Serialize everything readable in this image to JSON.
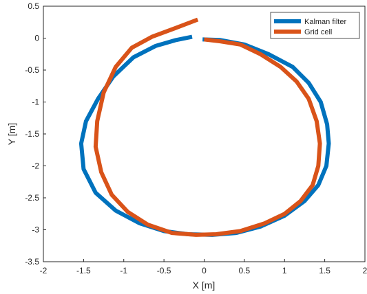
{
  "chart_data": {
    "type": "line",
    "title": "",
    "xlabel": "X [m]",
    "ylabel": "Y [m]",
    "xlim": [
      -2,
      2
    ],
    "ylim": [
      -3.5,
      0.5
    ],
    "xticks": [
      "-2",
      "-1.5",
      "-1",
      "-0.5",
      "0",
      "0.5",
      "1",
      "1.5",
      "2"
    ],
    "yticks": [
      "0.5",
      "0",
      "-0.5",
      "-1",
      "-1.5",
      "-2",
      "-2.5",
      "-3",
      "-3.5"
    ],
    "grid": false,
    "legend_position": "top-right",
    "series": [
      {
        "name": "Kalman filter",
        "color": "#0072BD",
        "x": [
          -0.02,
          0.2,
          0.5,
          0.8,
          1.1,
          1.3,
          1.45,
          1.53,
          1.55,
          1.52,
          1.42,
          1.25,
          1.0,
          0.7,
          0.4,
          0.1,
          -0.2,
          -0.5,
          -0.8,
          -1.1,
          -1.35,
          -1.5,
          -1.53,
          -1.47,
          -1.32,
          -1.13,
          -0.88,
          -0.6,
          -0.35,
          -0.15
        ],
        "y": [
          -0.02,
          -0.03,
          -0.1,
          -0.25,
          -0.45,
          -0.7,
          -1.0,
          -1.35,
          -1.65,
          -2.0,
          -2.3,
          -2.55,
          -2.78,
          -2.95,
          -3.05,
          -3.08,
          -3.07,
          -3.02,
          -2.9,
          -2.7,
          -2.42,
          -2.05,
          -1.65,
          -1.3,
          -0.95,
          -0.6,
          -0.3,
          -0.12,
          -0.03,
          0.02
        ]
      },
      {
        "name": "Grid cell",
        "color": "#D95319",
        "x": [
          0.0,
          0.2,
          0.45,
          0.7,
          0.95,
          1.15,
          1.3,
          1.4,
          1.44,
          1.42,
          1.35,
          1.2,
          1.0,
          0.75,
          0.45,
          0.15,
          -0.1,
          -0.4,
          -0.7,
          -0.95,
          -1.15,
          -1.28,
          -1.35,
          -1.33,
          -1.25,
          -1.1,
          -0.9,
          -0.65,
          -0.35,
          -0.08
        ],
        "y": [
          -0.02,
          -0.05,
          -0.1,
          -0.25,
          -0.45,
          -0.68,
          -0.95,
          -1.3,
          -1.65,
          -2.0,
          -2.3,
          -2.55,
          -2.75,
          -2.9,
          -3.02,
          -3.07,
          -3.08,
          -3.05,
          -2.92,
          -2.72,
          -2.45,
          -2.1,
          -1.7,
          -1.3,
          -0.85,
          -0.45,
          -0.15,
          0.02,
          0.16,
          0.29
        ]
      }
    ]
  }
}
